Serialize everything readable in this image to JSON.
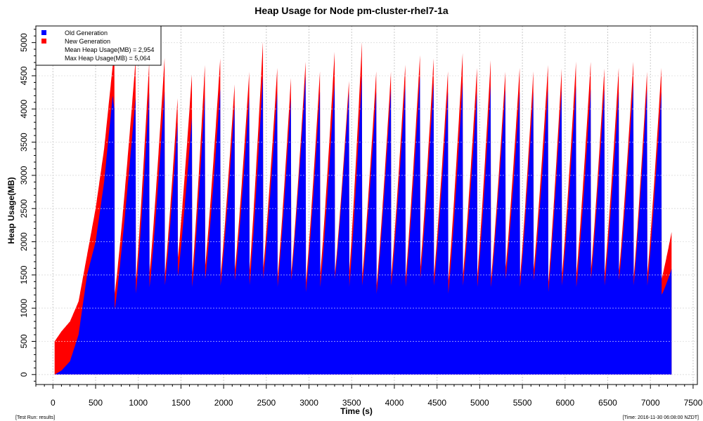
{
  "chart_data": {
    "type": "area",
    "title": "Heap Usage for Node pm-cluster-rhel7-1a",
    "xlabel": "Time (s)",
    "ylabel": "Heap Usage(MB)",
    "xlim": [
      -200,
      7550
    ],
    "ylim": [
      -150,
      5250
    ],
    "xticks": [
      0,
      500,
      1000,
      1500,
      2000,
      2500,
      3000,
      3500,
      4000,
      4500,
      5000,
      5500,
      6000,
      6500,
      7000,
      7500
    ],
    "xtick_labels": [
      "0",
      "500",
      "1000",
      "1500",
      "2000",
      "2500",
      "3000",
      "3500",
      "4000",
      "4500",
      "5000",
      "5500",
      "6000",
      "6500",
      "7000",
      "7500"
    ],
    "yticks": [
      0,
      500,
      1000,
      1500,
      2000,
      2500,
      3000,
      3500,
      4000,
      4500,
      5000
    ],
    "ytick_labels": [
      "0",
      "500",
      "1000",
      "1500",
      "2000",
      "2500",
      "3000",
      "3500",
      "4000",
      "4500",
      "5000"
    ],
    "grid": true,
    "legend_position": "top-left",
    "colors": {
      "old": "#0000ff",
      "new": "#ff0000",
      "grid": "#c8c8c8"
    },
    "series": [
      {
        "name": "Old Generation",
        "color": "#0000ff"
      },
      {
        "name": "New Generation",
        "color": "#ff0000"
      }
    ],
    "legend_notes": [
      "Mean Heap Usage(MB) = 2,954",
      "Max Heap Usage(MB) = 5,064"
    ],
    "ramp": {
      "x": [
        20,
        100,
        200,
        300,
        400,
        500,
        600,
        700,
        720
      ],
      "old": [
        0,
        60,
        200,
        600,
        1500,
        2000,
        2900,
        4200,
        4000
      ],
      "total_max": [
        500,
        650,
        800,
        1100,
        1800,
        2500,
        3400,
        4650,
        4680
      ]
    },
    "gc_cycles": [
      {
        "start": 720,
        "end": 970,
        "old_low": 950,
        "old_high": 4200,
        "total_peak": 4700
      },
      {
        "start": 970,
        "end": 1130,
        "old_low": 1200,
        "old_high": 4300,
        "total_peak": 4700
      },
      {
        "start": 1130,
        "end": 1310,
        "old_low": 1300,
        "old_high": 4300,
        "total_peak": 4750
      },
      {
        "start": 1310,
        "end": 1460,
        "old_low": 1330,
        "old_high": 3800,
        "total_peak": 4100
      },
      {
        "start": 1460,
        "end": 1630,
        "old_low": 1450,
        "old_high": 3900,
        "total_peak": 4500
      },
      {
        "start": 1630,
        "end": 1780,
        "old_low": 1300,
        "old_high": 4200,
        "total_peak": 4600
      },
      {
        "start": 1780,
        "end": 1960,
        "old_low": 1400,
        "old_high": 4300,
        "total_peak": 4700
      },
      {
        "start": 1960,
        "end": 2130,
        "old_low": 1300,
        "old_high": 4100,
        "total_peak": 4350
      },
      {
        "start": 2130,
        "end": 2300,
        "old_low": 1400,
        "old_high": 4200,
        "total_peak": 4500
      },
      {
        "start": 2300,
        "end": 2460,
        "old_low": 1300,
        "old_high": 4500,
        "total_peak": 4950
      },
      {
        "start": 2460,
        "end": 2630,
        "old_low": 1400,
        "old_high": 4300,
        "total_peak": 4600
      },
      {
        "start": 2630,
        "end": 2790,
        "old_low": 1300,
        "old_high": 4200,
        "total_peak": 4450
      },
      {
        "start": 2790,
        "end": 2960,
        "old_low": 1400,
        "old_high": 4500,
        "total_peak": 4650
      },
      {
        "start": 2960,
        "end": 3130,
        "old_low": 1200,
        "old_high": 4300,
        "total_peak": 4550
      },
      {
        "start": 3130,
        "end": 3300,
        "old_low": 1300,
        "old_high": 4400,
        "total_peak": 4800
      },
      {
        "start": 3300,
        "end": 3470,
        "old_low": 1400,
        "old_high": 4300,
        "total_peak": 4400
      },
      {
        "start": 3470,
        "end": 3620,
        "old_low": 1300,
        "old_high": 4500,
        "total_peak": 4950
      },
      {
        "start": 3620,
        "end": 3790,
        "old_low": 1300,
        "old_high": 4300,
        "total_peak": 4550
      },
      {
        "start": 3790,
        "end": 3960,
        "old_low": 1200,
        "old_high": 4300,
        "total_peak": 4500
      },
      {
        "start": 3960,
        "end": 4130,
        "old_low": 1300,
        "old_high": 4400,
        "total_peak": 4650
      },
      {
        "start": 4130,
        "end": 4300,
        "old_low": 1300,
        "old_high": 4500,
        "total_peak": 4750
      },
      {
        "start": 4300,
        "end": 4460,
        "old_low": 1400,
        "old_high": 4400,
        "total_peak": 4700
      },
      {
        "start": 4460,
        "end": 4630,
        "old_low": 1300,
        "old_high": 4300,
        "total_peak": 4550
      },
      {
        "start": 4630,
        "end": 4800,
        "old_low": 1200,
        "old_high": 4400,
        "total_peak": 4780
      },
      {
        "start": 4800,
        "end": 4970,
        "old_low": 1300,
        "old_high": 4300,
        "total_peak": 4600
      },
      {
        "start": 4970,
        "end": 5130,
        "old_low": 1300,
        "old_high": 4400,
        "total_peak": 4720
      },
      {
        "start": 5130,
        "end": 5300,
        "old_low": 1300,
        "old_high": 4300,
        "total_peak": 4500
      },
      {
        "start": 5300,
        "end": 5470,
        "old_low": 1400,
        "old_high": 4300,
        "total_peak": 4600
      },
      {
        "start": 5470,
        "end": 5630,
        "old_low": 1300,
        "old_high": 4300,
        "total_peak": 4550
      },
      {
        "start": 5630,
        "end": 5800,
        "old_low": 1400,
        "old_high": 4300,
        "total_peak": 4600
      },
      {
        "start": 5800,
        "end": 5960,
        "old_low": 1200,
        "old_high": 4300,
        "total_peak": 4550
      },
      {
        "start": 5960,
        "end": 6130,
        "old_low": 1300,
        "old_high": 4400,
        "total_peak": 4700
      },
      {
        "start": 6130,
        "end": 6300,
        "old_low": 1300,
        "old_high": 4300,
        "total_peak": 4650
      },
      {
        "start": 6300,
        "end": 6460,
        "old_low": 1400,
        "old_high": 4300,
        "total_peak": 4550
      },
      {
        "start": 6460,
        "end": 6630,
        "old_low": 1300,
        "old_high": 4300,
        "total_peak": 4600
      },
      {
        "start": 6630,
        "end": 6800,
        "old_low": 1400,
        "old_high": 4400,
        "total_peak": 4650
      },
      {
        "start": 6800,
        "end": 6960,
        "old_low": 1300,
        "old_high": 4300,
        "total_peak": 4500
      },
      {
        "start": 6960,
        "end": 7130,
        "old_low": 1300,
        "old_high": 4300,
        "total_peak": 4600
      },
      {
        "start": 7130,
        "end": 7250,
        "old_low": 1200,
        "old_high": 1600,
        "total_peak": 2100
      }
    ]
  },
  "footer": {
    "left": "[Test Run: results]",
    "right": "[Time: 2016-11-30 06:08:00 NZDT]"
  }
}
